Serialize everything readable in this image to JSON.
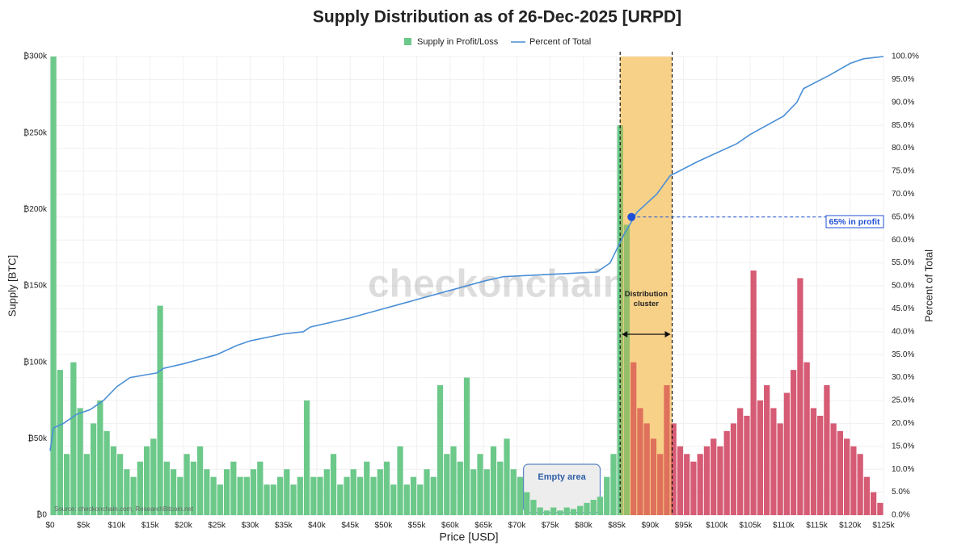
{
  "chart_data": {
    "type": "histogram",
    "title": "Supply Distribution as of 26-Dec-2025 [URPD]",
    "xlabel": "Price [USD]",
    "ylabel": "Supply [BTC]",
    "y2label": "Percent of Total",
    "watermark": "checkonchain",
    "source": "Source: checkonchain.com, ResearchBitcoin.net",
    "legend": "top",
    "series": [
      {
        "name": "Supply in Profit/Loss",
        "color": "#6cc98a",
        "loss_color": "#d65b74"
      },
      {
        "name": "Percent of Total",
        "color": "#4a8fd6",
        "axis": "y2"
      }
    ],
    "bins": [
      0,
      1000,
      2000,
      3000,
      4000,
      5000,
      6000,
      7000,
      8000,
      9000,
      10000,
      11000,
      12000,
      13000,
      14000,
      15000,
      16000,
      17000,
      18000,
      19000,
      20000,
      21000,
      22000,
      23000,
      24000,
      25000,
      26000,
      27000,
      28000,
      29000,
      30000,
      31000,
      32000,
      33000,
      34000,
      35000,
      36000,
      37000,
      38000,
      39000,
      40000,
      41000,
      42000,
      43000,
      44000,
      45000,
      46000,
      47000,
      48000,
      49000,
      50000,
      51000,
      52000,
      53000,
      54000,
      55000,
      56000,
      57000,
      58000,
      59000,
      60000,
      61000,
      62000,
      63000,
      64000,
      65000,
      66000,
      67000,
      68000,
      69000,
      70000,
      71000,
      72000,
      73000,
      74000,
      75000,
      76000,
      77000,
      78000,
      79000,
      80000,
      81000,
      82000,
      83000,
      84000,
      85000,
      86000,
      87000,
      88000,
      89000,
      90000,
      91000,
      92000,
      93000,
      94000,
      95000,
      96000,
      97000,
      98000,
      99000,
      100000,
      101000,
      102000,
      103000,
      104000,
      105000,
      106000,
      107000,
      108000,
      109000,
      110000,
      111000,
      112000,
      113000,
      114000,
      115000,
      116000,
      117000,
      118000,
      119000,
      120000,
      121000,
      122000,
      123000,
      124000,
      125000
    ],
    "values": [
      300000,
      95000,
      40000,
      100000,
      70000,
      40000,
      60000,
      75000,
      55000,
      45000,
      40000,
      30000,
      25000,
      35000,
      45000,
      50000,
      137000,
      35000,
      30000,
      25000,
      40000,
      35000,
      45000,
      30000,
      25000,
      20000,
      30000,
      35000,
      25000,
      25000,
      30000,
      35000,
      20000,
      20000,
      25000,
      30000,
      20000,
      25000,
      75000,
      25000,
      25000,
      30000,
      40000,
      20000,
      25000,
      30000,
      25000,
      35000,
      25000,
      30000,
      35000,
      20000,
      45000,
      20000,
      25000,
      20000,
      30000,
      25000,
      85000,
      40000,
      45000,
      35000,
      90000,
      30000,
      40000,
      30000,
      45000,
      35000,
      50000,
      30000,
      25000,
      15000,
      10000,
      5000,
      3000,
      5000,
      3000,
      5000,
      4000,
      6000,
      8000,
      10000,
      12000,
      25000,
      40000,
      255000,
      190000,
      100000,
      70000,
      60000,
      50000,
      40000,
      85000,
      60000,
      45000,
      40000,
      35000,
      40000,
      45000,
      50000,
      45000,
      55000,
      60000,
      70000,
      65000,
      160000,
      75000,
      85000,
      70000,
      60000,
      80000,
      95000,
      155000,
      100000,
      70000,
      65000,
      85000,
      60000,
      55000,
      50000,
      45000,
      40000,
      25000,
      15000,
      8000
    ],
    "line": {
      "x": [
        0,
        500,
        2000,
        4000,
        6000,
        8000,
        10000,
        12000,
        14000,
        16000,
        17000,
        20000,
        25000,
        28000,
        30000,
        35000,
        38000,
        39000,
        45000,
        50000,
        55000,
        60000,
        65000,
        68000,
        75000,
        82000,
        84000,
        85000,
        86000,
        88000,
        91000,
        93000,
        97000,
        100000,
        103000,
        105000,
        110000,
        112000,
        113000,
        117000,
        120000,
        122000,
        125000
      ],
      "values": [
        14,
        19,
        20,
        22,
        23,
        25,
        28,
        30,
        30.5,
        31,
        32,
        33,
        35,
        37,
        38,
        39.5,
        40,
        41,
        43,
        45,
        47,
        49,
        51,
        52,
        52.5,
        53,
        55,
        58,
        61,
        66,
        70,
        74,
        77,
        79,
        81,
        83,
        87,
        90,
        93,
        96,
        98.5,
        99.5,
        100
      ]
    },
    "marker": {
      "x": 87200,
      "y": 65,
      "label": "65% in profit"
    },
    "cluster": {
      "range": [
        85500,
        93300
      ],
      "label": "Distribution cluster"
    },
    "empty_area": {
      "range": [
        71000,
        82500
      ],
      "label": "Empty area"
    },
    "xlim": [
      0,
      125000
    ],
    "ylim": [
      0,
      300000
    ],
    "y2lim": [
      0,
      100
    ],
    "xticks": [
      {
        "value": 0,
        "label": "$0"
      },
      {
        "value": 5000,
        "label": "$5k"
      },
      {
        "value": 10000,
        "label": "$10k"
      },
      {
        "value": 15000,
        "label": "$15k"
      },
      {
        "value": 20000,
        "label": "$20k"
      },
      {
        "value": 25000,
        "label": "$25k"
      },
      {
        "value": 30000,
        "label": "$30k"
      },
      {
        "value": 35000,
        "label": "$35k"
      },
      {
        "value": 40000,
        "label": "$40k"
      },
      {
        "value": 45000,
        "label": "$45k"
      },
      {
        "value": 50000,
        "label": "$50k"
      },
      {
        "value": 55000,
        "label": "$55k"
      },
      {
        "value": 60000,
        "label": "$60k"
      },
      {
        "value": 65000,
        "label": "$65k"
      },
      {
        "value": 70000,
        "label": "$70k"
      },
      {
        "value": 75000,
        "label": "$75k"
      },
      {
        "value": 80000,
        "label": "$80k"
      },
      {
        "value": 85000,
        "label": "$85k"
      },
      {
        "value": 90000,
        "label": "$90k"
      },
      {
        "value": 95000,
        "label": "$95k"
      },
      {
        "value": 100000,
        "label": "$100k"
      },
      {
        "value": 105000,
        "label": "$105k"
      },
      {
        "value": 110000,
        "label": "$110k"
      },
      {
        "value": 115000,
        "label": "$115k"
      },
      {
        "value": 120000,
        "label": "$120k"
      },
      {
        "value": 125000,
        "label": "$125k"
      }
    ],
    "yticks": [
      {
        "value": 0,
        "label": "₿0"
      },
      {
        "value": 50000,
        "label": "₿50k"
      },
      {
        "value": 100000,
        "label": "₿100k"
      },
      {
        "value": 150000,
        "label": "₿150k"
      },
      {
        "value": 200000,
        "label": "₿200k"
      },
      {
        "value": 250000,
        "label": "₿250k"
      },
      {
        "value": 300000,
        "label": "₿300k"
      }
    ],
    "y2ticks": [
      {
        "value": 0,
        "label": "0.0%"
      },
      {
        "value": 5,
        "label": "5.0%"
      },
      {
        "value": 10,
        "label": "10.0%"
      },
      {
        "value": 15,
        "label": "15.0%"
      },
      {
        "value": 20,
        "label": "20.0%"
      },
      {
        "value": 25,
        "label": "25.0%"
      },
      {
        "value": 30,
        "label": "30.0%"
      },
      {
        "value": 35,
        "label": "35.0%"
      },
      {
        "value": 40,
        "label": "40.0%"
      },
      {
        "value": 45,
        "label": "45.0%"
      },
      {
        "value": 50,
        "label": "50.0%"
      },
      {
        "value": 55,
        "label": "55.0%"
      },
      {
        "value": 60,
        "label": "60.0%"
      },
      {
        "value": 65,
        "label": "65.0%"
      },
      {
        "value": 70,
        "label": "70.0%"
      },
      {
        "value": 75,
        "label": "75.0%"
      },
      {
        "value": 80,
        "label": "80.0%"
      },
      {
        "value": 85,
        "label": "85.0%"
      },
      {
        "value": 90,
        "label": "90.0%"
      },
      {
        "value": 95,
        "label": "95.0%"
      },
      {
        "value": 100,
        "label": "100.0%"
      }
    ],
    "grid": true
  }
}
